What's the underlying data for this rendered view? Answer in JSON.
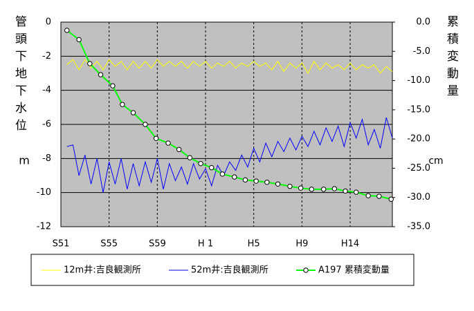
{
  "chart_data": {
    "type": "line",
    "y_label": "管頭下地下水位",
    "y_unit": "m",
    "y2_label": "累積変動量",
    "y2_unit": "cm",
    "xlim": [
      1976,
      2003.5
    ],
    "xticks": [
      {
        "value": 1976,
        "label": "S51"
      },
      {
        "value": 1980,
        "label": "S55"
      },
      {
        "value": 1984,
        "label": "S59"
      },
      {
        "value": 1988,
        "label": "H 1"
      },
      {
        "value": 1992,
        "label": "H5"
      },
      {
        "value": 1996,
        "label": "H9"
      },
      {
        "value": 2000,
        "label": "H14"
      }
    ],
    "ylim": [
      -12,
      0
    ],
    "yticks": [
      0,
      -2,
      -4,
      -6,
      -8,
      -10,
      -12
    ],
    "y2lim": [
      -35,
      0
    ],
    "y2ticks": [
      {
        "value": 0,
        "label": "0.0"
      },
      {
        "value": -5,
        "label": "-5.0"
      },
      {
        "value": -10,
        "label": "-10.0"
      },
      {
        "value": -15,
        "label": "-15.0"
      },
      {
        "value": -20,
        "label": "-20.0"
      },
      {
        "value": -25,
        "label": "-25.0"
      },
      {
        "value": -30,
        "label": "-30.0"
      },
      {
        "value": -35,
        "label": "-35.0"
      }
    ],
    "grid": true,
    "background": "#c0c0c0",
    "series": [
      {
        "name": "12m井:吉良観測所",
        "color": "#ffff00",
        "x": [
          1976.5,
          1977,
          1977.5,
          1978,
          1978.5,
          1979,
          1979.5,
          1980,
          1980.5,
          1981,
          1981.5,
          1982,
          1982.5,
          1983,
          1983.5,
          1984,
          1984.5,
          1985,
          1985.5,
          1986,
          1986.5,
          1987,
          1987.5,
          1988,
          1988.5,
          1989,
          1989.5,
          1990,
          1990.5,
          1991,
          1991.5,
          1992,
          1992.5,
          1993,
          1993.5,
          1994,
          1994.5,
          1995,
          1995.5,
          1996,
          1996.5,
          1997,
          1997.5,
          1998,
          1998.5,
          1999,
          1999.5,
          2000,
          2000.5,
          2001,
          2001.5,
          2002,
          2002.5,
          2003,
          2003.5
        ],
        "values": [
          -2.5,
          -2.2,
          -2.8,
          -2.2,
          -2.7,
          -2.3,
          -2.8,
          -2.2,
          -2.6,
          -2.3,
          -2.8,
          -2.3,
          -2.7,
          -2.3,
          -2.7,
          -2.2,
          -2.6,
          -2.3,
          -2.6,
          -2.3,
          -2.7,
          -2.3,
          -2.6,
          -2.3,
          -2.7,
          -2.4,
          -2.6,
          -2.3,
          -2.7,
          -2.4,
          -2.6,
          -2.3,
          -2.6,
          -2.4,
          -2.8,
          -2.3,
          -2.9,
          -2.4,
          -2.7,
          -2.4,
          -3.0,
          -2.3,
          -2.8,
          -2.4,
          -2.7,
          -2.5,
          -2.8,
          -2.4,
          -2.8,
          -2.5,
          -2.7,
          -2.5,
          -3.0,
          -2.6,
          -2.9
        ]
      },
      {
        "name": "52m井:吉良観測所",
        "color": "#0000ff",
        "x": [
          1976.5,
          1977,
          1977.5,
          1978,
          1978.5,
          1979,
          1979.5,
          1980,
          1980.5,
          1981,
          1981.5,
          1982,
          1982.5,
          1983,
          1983.5,
          1984,
          1984.5,
          1985,
          1985.5,
          1986,
          1986.5,
          1987,
          1987.5,
          1988,
          1988.5,
          1989,
          1989.5,
          1990,
          1990.5,
          1991,
          1991.5,
          1992,
          1992.5,
          1993,
          1993.5,
          1994,
          1994.5,
          1995,
          1995.5,
          1996,
          1996.5,
          1997,
          1997.5,
          1998,
          1998.5,
          1999,
          1999.5,
          2000,
          2000.5,
          2001,
          2001.5,
          2002,
          2002.5,
          2003,
          2003.5
        ],
        "values": [
          -7.3,
          -7.2,
          -9.0,
          -7.8,
          -9.5,
          -8.0,
          -10.0,
          -8.2,
          -9.5,
          -8.0,
          -9.8,
          -8.3,
          -9.6,
          -8.2,
          -9.4,
          -8.0,
          -9.8,
          -8.3,
          -9.3,
          -8.5,
          -9.5,
          -8.3,
          -9.2,
          -8.6,
          -9.6,
          -8.4,
          -9.0,
          -8.2,
          -8.7,
          -7.8,
          -8.5,
          -7.4,
          -8.2,
          -7.1,
          -7.9,
          -7.0,
          -7.6,
          -6.8,
          -7.5,
          -6.7,
          -7.3,
          -6.4,
          -7.2,
          -6.2,
          -7.0,
          -6.1,
          -7.3,
          -5.9,
          -6.8,
          -5.7,
          -7.2,
          -6.3,
          -7.4,
          -5.6,
          -6.8
        ]
      },
      {
        "name": "A197 累積変動量",
        "color": "#00ff00",
        "axis": "y2",
        "marker": true,
        "x": [
          1976.5,
          1977.5,
          1978.4,
          1979.3,
          1980.3,
          1981.1,
          1982.0,
          1983.0,
          1983.9,
          1984.9,
          1985.8,
          1986.7,
          1987.6,
          1988.5,
          1989.4,
          1990.4,
          1991.3,
          1992.2,
          1993.1,
          1994.0,
          1995.0,
          1995.9,
          1996.8,
          1997.8,
          1998.7,
          1999.6,
          2000.5,
          2001.5,
          2002.4,
          2003.4
        ],
        "values": [
          -1.4,
          -3.0,
          -7.1,
          -9.0,
          -10.9,
          -14.1,
          -15.5,
          -17.5,
          -19.9,
          -20.7,
          -21.8,
          -23.2,
          -24.2,
          -24.9,
          -26.0,
          -26.5,
          -27.0,
          -27.2,
          -27.4,
          -27.7,
          -28.1,
          -28.4,
          -28.6,
          -28.6,
          -28.5,
          -28.9,
          -29.1,
          -29.7,
          -29.8,
          -30.3
        ]
      }
    ]
  }
}
